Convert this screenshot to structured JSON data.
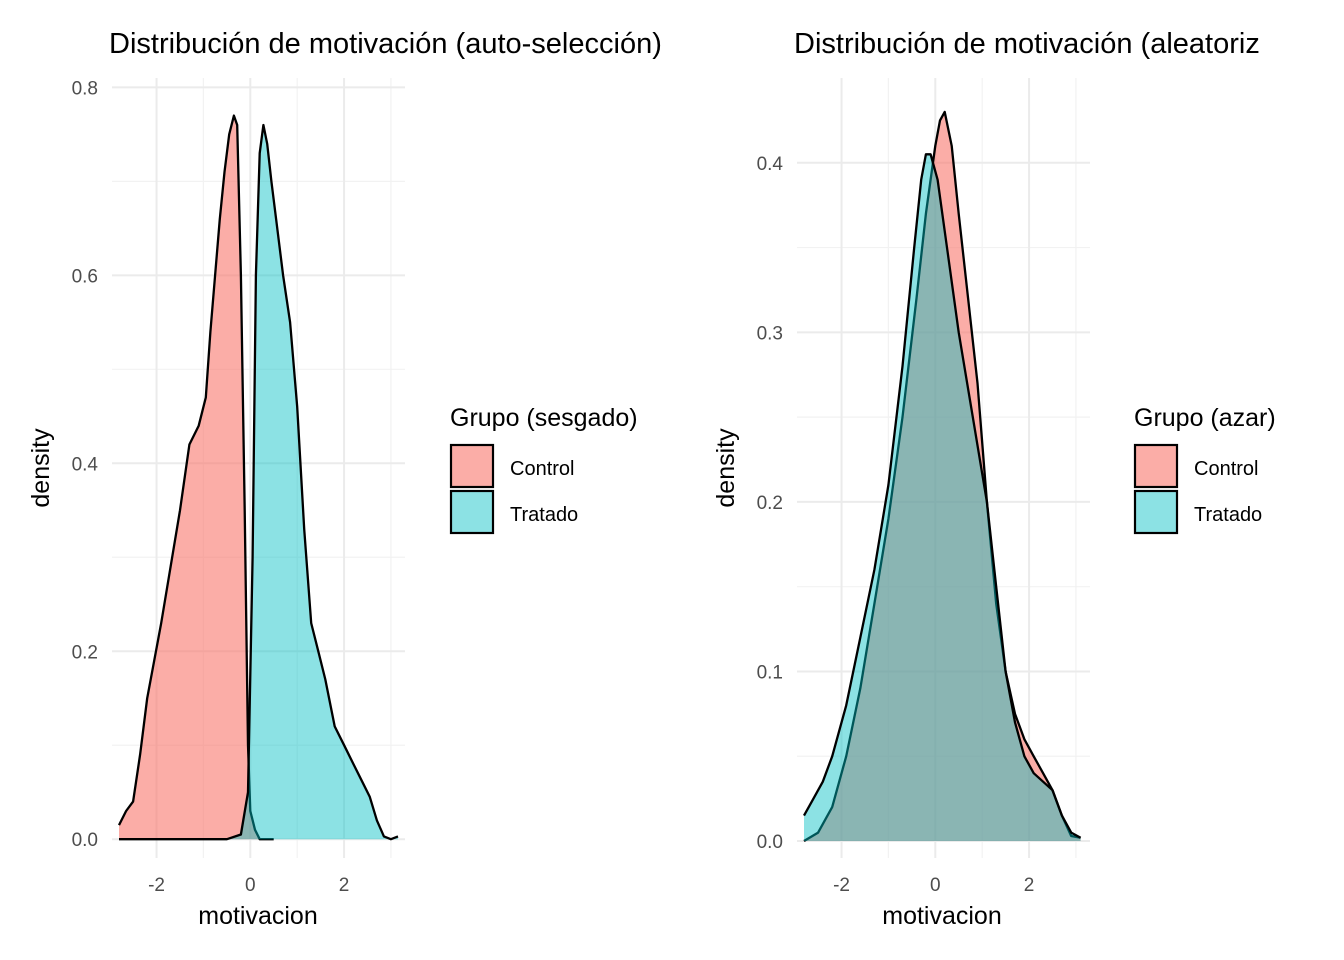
{
  "chart_data": [
    {
      "type": "area",
      "subtype": "density",
      "title": "Distribución de motivación (auto-selección)",
      "xlabel": "motivacion",
      "ylabel": "density",
      "xlim": [
        -2.95,
        3.3
      ],
      "ylim": [
        -0.02,
        0.81
      ],
      "x_ticks": [
        -2,
        0,
        2
      ],
      "x_tick_labels": [
        "-2",
        "0",
        "2"
      ],
      "y_ticks": [
        0.0,
        0.2,
        0.4,
        0.6,
        0.8
      ],
      "y_tick_labels": [
        "0.0",
        "0.2",
        "0.4",
        "0.6",
        "0.8"
      ],
      "grid": true,
      "legend_title": "Grupo (sesgado)",
      "legend_position": "right",
      "series": [
        {
          "name": "Control",
          "color": "#F8766D",
          "x": [
            -2.8,
            -2.65,
            -2.5,
            -2.35,
            -2.2,
            -2.05,
            -1.9,
            -1.7,
            -1.5,
            -1.3,
            -1.1,
            -0.95,
            -0.85,
            -0.75,
            -0.65,
            -0.55,
            -0.45,
            -0.35,
            -0.28,
            -0.2,
            -0.12,
            -0.05,
            0.0,
            0.1,
            0.2,
            0.35,
            0.5
          ],
          "y": [
            0.015,
            0.03,
            0.04,
            0.09,
            0.15,
            0.19,
            0.23,
            0.29,
            0.35,
            0.42,
            0.44,
            0.47,
            0.54,
            0.6,
            0.66,
            0.71,
            0.75,
            0.77,
            0.76,
            0.6,
            0.35,
            0.1,
            0.03,
            0.01,
            0.0,
            0.0,
            0.0
          ]
        },
        {
          "name": "Tratado",
          "color": "#00BFC4",
          "x": [
            -2.8,
            -1.0,
            -0.5,
            -0.2,
            -0.05,
            0.05,
            0.12,
            0.2,
            0.28,
            0.36,
            0.45,
            0.55,
            0.7,
            0.85,
            1.0,
            1.15,
            1.3,
            1.45,
            1.6,
            1.8,
            2.0,
            2.2,
            2.4,
            2.55,
            2.7,
            2.85,
            3.0,
            3.15
          ],
          "y": [
            0.0,
            0.0,
            0.0,
            0.005,
            0.05,
            0.3,
            0.6,
            0.73,
            0.76,
            0.74,
            0.7,
            0.66,
            0.6,
            0.55,
            0.46,
            0.33,
            0.23,
            0.2,
            0.17,
            0.12,
            0.1,
            0.08,
            0.06,
            0.045,
            0.02,
            0.003,
            0.0,
            0.003
          ]
        }
      ]
    },
    {
      "type": "area",
      "subtype": "density",
      "title": "Distribución de motivación (aleatoriz",
      "xlabel": "motivacion",
      "ylabel": "density",
      "xlim": [
        -2.95,
        3.3
      ],
      "ylim": [
        -0.01,
        0.45
      ],
      "x_ticks": [
        -2,
        0,
        2
      ],
      "x_tick_labels": [
        "-2",
        "0",
        "2"
      ],
      "y_ticks": [
        0.0,
        0.1,
        0.2,
        0.3,
        0.4
      ],
      "y_tick_labels": [
        "0.0",
        "0.1",
        "0.2",
        "0.3",
        "0.4"
      ],
      "grid": true,
      "legend_title": "Grupo (azar)",
      "legend_position": "right",
      "series": [
        {
          "name": "Control",
          "color": "#F8766D",
          "x": [
            -2.8,
            -2.5,
            -2.2,
            -1.9,
            -1.6,
            -1.3,
            -1.0,
            -0.7,
            -0.4,
            -0.2,
            0.0,
            0.1,
            0.2,
            0.35,
            0.5,
            0.7,
            0.9,
            1.1,
            1.3,
            1.5,
            1.7,
            1.9,
            2.1,
            2.3,
            2.5,
            2.7,
            2.9,
            3.1
          ],
          "y": [
            0.0,
            0.005,
            0.02,
            0.05,
            0.09,
            0.14,
            0.19,
            0.25,
            0.32,
            0.37,
            0.41,
            0.425,
            0.43,
            0.41,
            0.37,
            0.32,
            0.27,
            0.2,
            0.14,
            0.1,
            0.075,
            0.06,
            0.05,
            0.04,
            0.03,
            0.015,
            0.003,
            0.002
          ]
        },
        {
          "name": "Tratado",
          "color": "#00BFC4",
          "x": [
            -2.8,
            -2.6,
            -2.4,
            -2.2,
            -1.9,
            -1.6,
            -1.3,
            -1.0,
            -0.7,
            -0.45,
            -0.3,
            -0.2,
            -0.1,
            0.05,
            0.25,
            0.5,
            0.8,
            1.1,
            1.3,
            1.5,
            1.7,
            1.9,
            2.1,
            2.3,
            2.5,
            2.7,
            2.9,
            3.1
          ],
          "y": [
            0.015,
            0.025,
            0.035,
            0.05,
            0.08,
            0.12,
            0.16,
            0.21,
            0.28,
            0.35,
            0.39,
            0.405,
            0.405,
            0.39,
            0.35,
            0.3,
            0.25,
            0.2,
            0.15,
            0.1,
            0.07,
            0.05,
            0.04,
            0.035,
            0.03,
            0.015,
            0.005,
            0.002
          ]
        }
      ]
    }
  ]
}
